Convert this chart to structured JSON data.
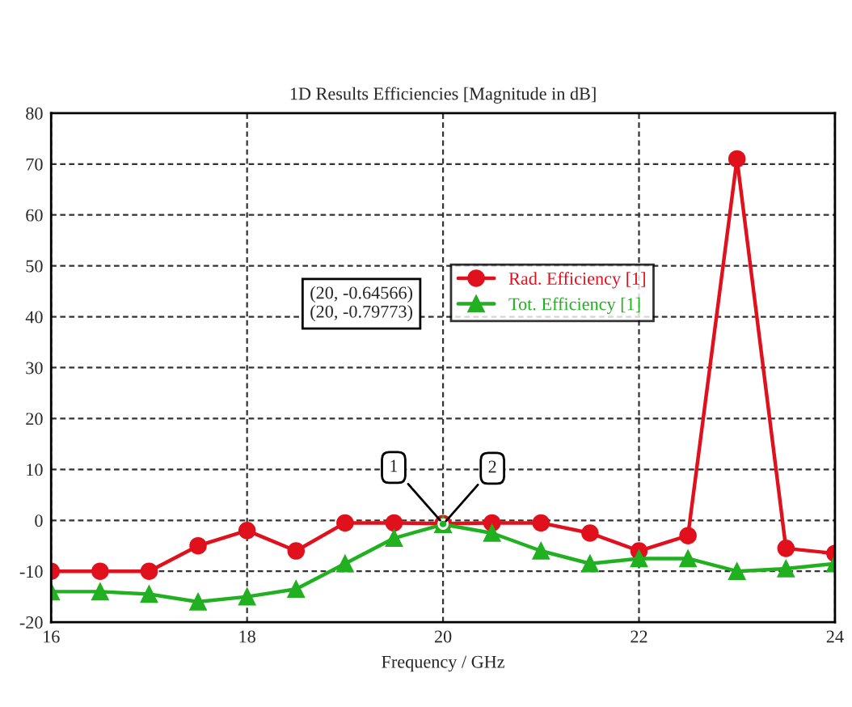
{
  "chart_data": {
    "type": "line",
    "title": "1D Results Efficiencies [Magnitude in dB]",
    "xlabel": "Frequency / GHz",
    "x": [
      16,
      16.5,
      17,
      17.5,
      18,
      18.5,
      19,
      19.5,
      20,
      20.5,
      21,
      21.5,
      22,
      22.5,
      23,
      23.5,
      24
    ],
    "series": [
      {
        "name": "Rad. Efficiency [1]",
        "color": "#e0101c",
        "marker": "circle",
        "values": [
          -10,
          -10,
          -10,
          -5,
          -2,
          -6,
          -0.5,
          -0.5,
          -0.64566,
          -0.5,
          -0.5,
          -2.5,
          -6,
          -3,
          71,
          -5.5,
          -6.5
        ]
      },
      {
        "name": "Tot. Efficiency [1]",
        "color": "#20b020",
        "marker": "triangle",
        "values": [
          -14,
          -14,
          -14.5,
          -16,
          -15,
          -13.5,
          -8.5,
          -3.5,
          -0.79773,
          -2.5,
          -6,
          -8.5,
          -7.5,
          -7.5,
          -10,
          -9.5,
          -8.5
        ]
      }
    ],
    "annotations": [
      {
        "text": "1",
        "x": 20,
        "y": -0.64566
      },
      {
        "text": "2",
        "x": 20,
        "y": -0.79773
      },
      "(20, -0.64566)",
      "(20, -0.79773)"
    ],
    "xlim": [
      16,
      24
    ],
    "xticks": [
      16,
      18,
      20,
      22,
      24
    ],
    "ylim": [
      -20,
      80
    ],
    "yticks": [
      -20,
      -10,
      0,
      10,
      20,
      30,
      40,
      50,
      60,
      70,
      80
    ],
    "grid": true,
    "legend": "top right",
    "line_style": "solid"
  }
}
